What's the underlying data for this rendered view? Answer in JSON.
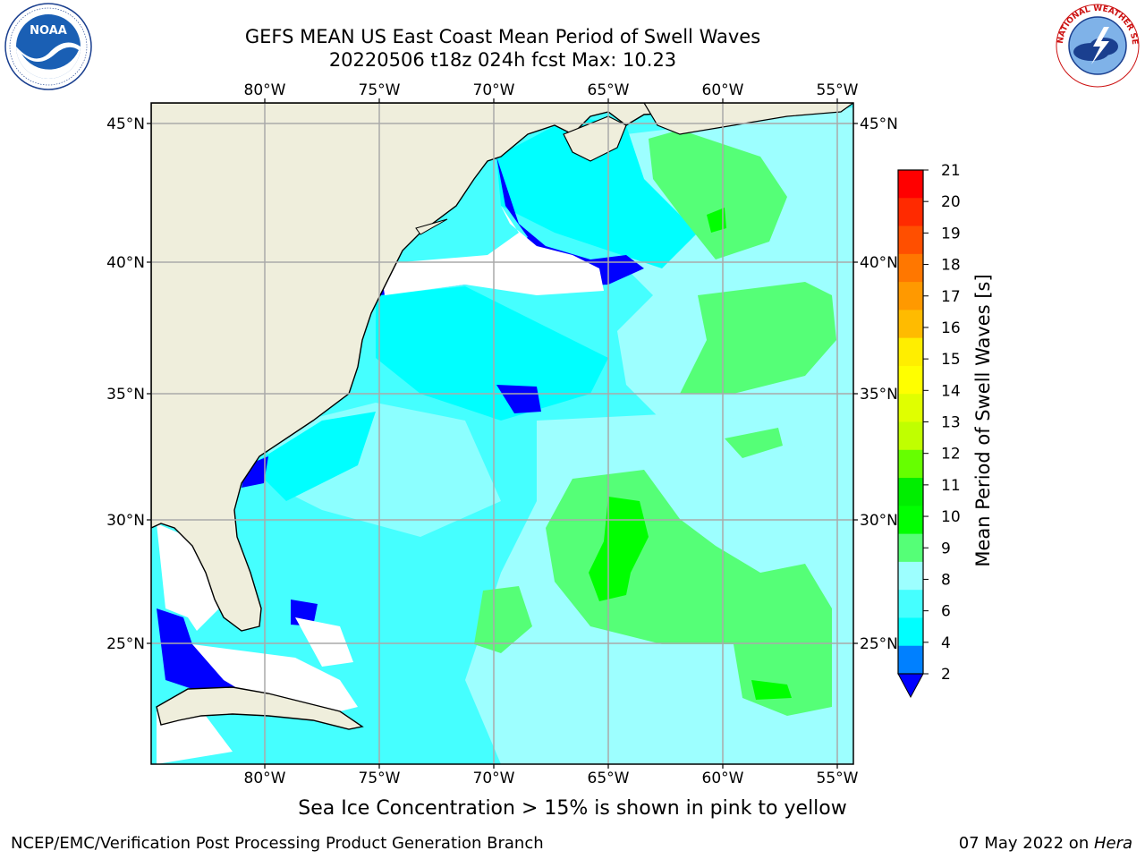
{
  "header": {
    "title_line1": "GEFS MEAN US East Coast Mean Period of Swell Waves",
    "title_line2": "20220506 t18z 024h fcst   Max: 10.23"
  },
  "logos": {
    "left": {
      "name": "NOAA",
      "ring_text": "NATIONAL OCEANIC AND ATMOSPHERIC ADMINISTRATION · U.S. DEPARTMENT OF COMMERCE"
    },
    "right": {
      "name": "NATIONAL WEATHER SERVICE"
    }
  },
  "map": {
    "lon_labels": [
      "80°W",
      "75°W",
      "70°W",
      "65°W",
      "60°W",
      "55°W"
    ],
    "lat_labels": [
      "45°N",
      "40°N",
      "35°N",
      "30°N",
      "25°N"
    ],
    "land_color": "#efeedc",
    "ocean_colors": {
      "4-6": "#00ffff",
      "6-8": "#45ffff",
      "8-9": "#9dffff",
      "9-10": "#55ff77",
      "10-11": "#00ff00",
      "lt4": "#0000ff",
      "nodata": "#ffffff"
    }
  },
  "colorbar": {
    "label": "Mean Period of Swell Waves [s]",
    "ticks": [
      "21",
      "20",
      "19",
      "18",
      "17",
      "16",
      "15",
      "14",
      "13",
      "12",
      "11",
      "10",
      "9",
      "8",
      "6",
      "4",
      "2"
    ],
    "colors": [
      "#ff0000",
      "#ff2a00",
      "#ff4f00",
      "#ff7700",
      "#ff9900",
      "#ffbb00",
      "#ffee00",
      "#ffff00",
      "#e0ff00",
      "#c0ff00",
      "#66ff00",
      "#00ee00",
      "#00ff00",
      "#55ff77",
      "#9dffff",
      "#45ffff",
      "#00ffff",
      "#0080ff"
    ],
    "under_color": "#0000ff"
  },
  "note": "Sea Ice Concentration > 15% is shown in pink to yellow",
  "footer": {
    "left": "NCEP/EMC/Verification Post Processing Product Generation Branch",
    "right_prefix": "07 May 2022 on ",
    "right_machine": "Hera"
  }
}
